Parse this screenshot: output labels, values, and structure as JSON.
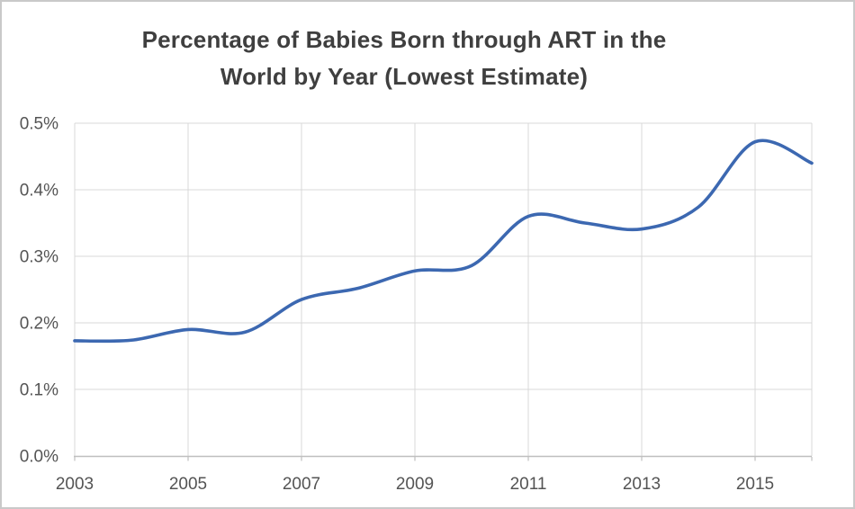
{
  "window": {
    "background_color": "#ffffff",
    "border_color": "#c9c9c9"
  },
  "header": {
    "title_line1": "Percentage of Babies Born through ART in the",
    "title_line2": "World by Year (Lowest Estimate)",
    "title_color": "#3f3f3f"
  },
  "chart_data": {
    "type": "line",
    "title": "Percentage of Babies Born through ART in the World by Year (Lowest Estimate)",
    "series": [
      {
        "name": "Percent of babies born through ART (lowest estimate)",
        "x": [
          2003,
          2004,
          2005,
          2006,
          2007,
          2008,
          2009,
          2010,
          2011,
          2012,
          2013,
          2014,
          2015,
          2016
        ],
        "values": [
          0.173,
          0.174,
          0.19,
          0.186,
          0.235,
          0.252,
          0.278,
          0.286,
          0.36,
          0.35,
          0.341,
          0.374,
          0.472,
          0.44
        ]
      }
    ],
    "xlabel": "",
    "ylabel": "",
    "xlim": [
      2003,
      2016
    ],
    "ylim": [
      0.0,
      0.5
    ],
    "x_tick_labels": [
      "2003",
      "2005",
      "2007",
      "2009",
      "2011",
      "2013",
      "2015"
    ],
    "y_tick_labels": [
      "0.0%",
      "0.1%",
      "0.2%",
      "0.3%",
      "0.4%",
      "0.5%"
    ],
    "y_tick_values": [
      0.0,
      0.1,
      0.2,
      0.3,
      0.4,
      0.5
    ],
    "grid": true,
    "legend": false,
    "smooth_line": true,
    "line_color": "#3c68b1",
    "line_width": 3.6,
    "gridline_color": "#d9d9d9",
    "axis_line_color": "#bfbfbf",
    "tick_label_color": "#545454",
    "tick_label_font_size": 19
  }
}
